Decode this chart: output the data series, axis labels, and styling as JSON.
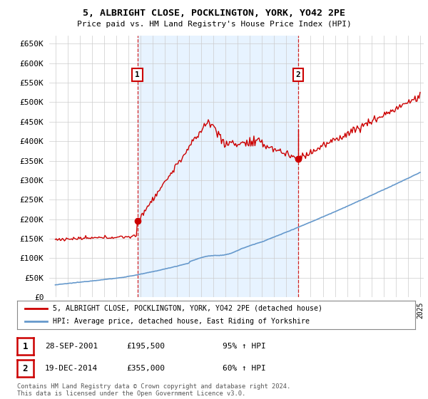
{
  "title_line1": "5, ALBRIGHT CLOSE, POCKLINGTON, YORK, YO42 2PE",
  "title_line2": "Price paid vs. HM Land Registry's House Price Index (HPI)",
  "legend_label_red": "5, ALBRIGHT CLOSE, POCKLINGTON, YORK, YO42 2PE (detached house)",
  "legend_label_blue": "HPI: Average price, detached house, East Riding of Yorkshire",
  "annotation1_date": "28-SEP-2001",
  "annotation1_price": "£195,500",
  "annotation1_hpi": "95% ↑ HPI",
  "annotation2_date": "19-DEC-2014",
  "annotation2_price": "£355,000",
  "annotation2_hpi": "60% ↑ HPI",
  "footer": "Contains HM Land Registry data © Crown copyright and database right 2024.\nThis data is licensed under the Open Government Licence v3.0.",
  "ylim": [
    0,
    670000
  ],
  "yticks": [
    0,
    50000,
    100000,
    150000,
    200000,
    250000,
    300000,
    350000,
    400000,
    450000,
    500000,
    550000,
    600000,
    650000
  ],
  "background_color": "#ffffff",
  "grid_color": "#cccccc",
  "shade_color": "#ddeeff",
  "red_color": "#cc0000",
  "blue_color": "#6699cc",
  "sale1_year": 2001.75,
  "sale1_price": 195500,
  "sale2_year": 2014.97,
  "sale2_price": 355000,
  "xmin": 1995,
  "xmax": 2025
}
